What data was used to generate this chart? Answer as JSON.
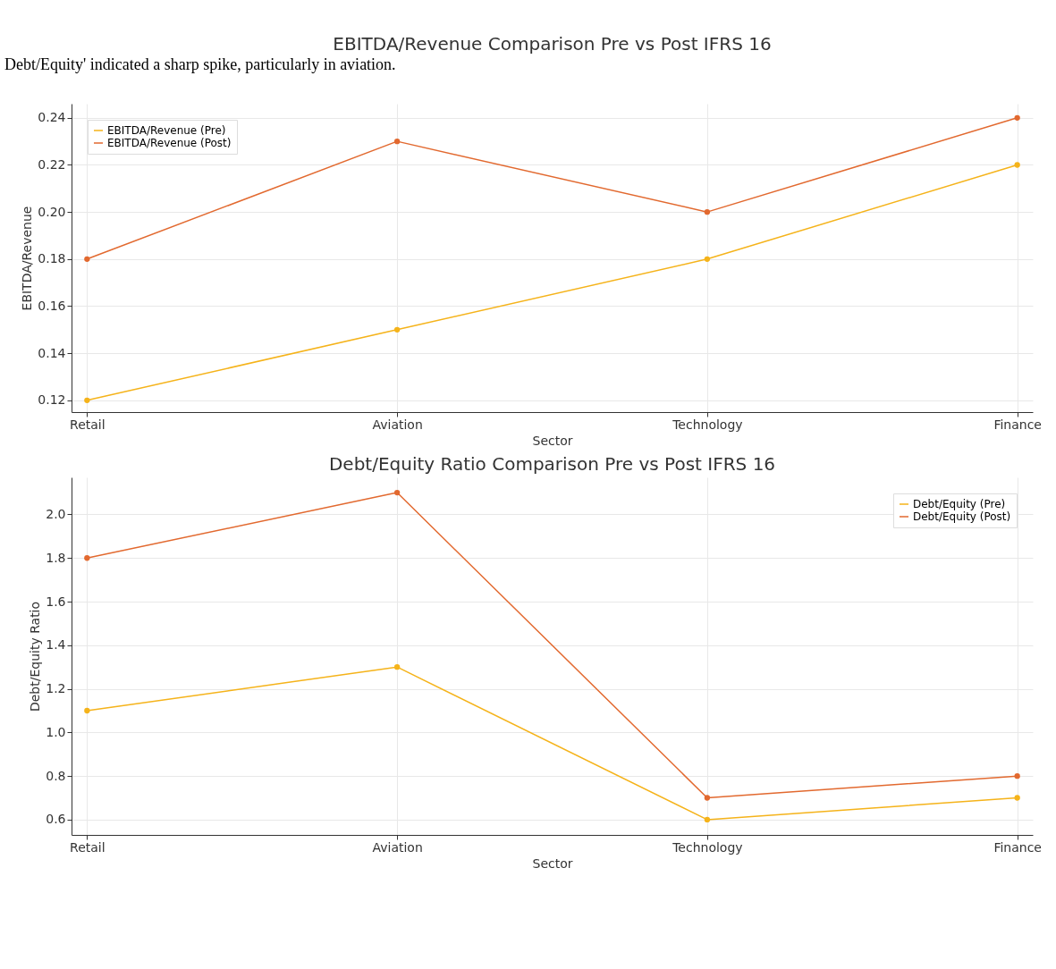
{
  "chart_data": [
    {
      "type": "line",
      "title": "EBITDA/Revenue Comparison Pre vs Post IFRS 16",
      "xlabel": "Sector",
      "ylabel": "EBITDA/Revenue",
      "annotations": [
        "Debt/Equity' indicated a sharp spike, particularly in aviation."
      ],
      "categories": [
        "Retail",
        "Aviation",
        "Technology",
        "Finance"
      ],
      "series": [
        {
          "name": "EBITDA/Revenue (Pre)",
          "color": "#f5b31a",
          "values": [
            0.12,
            0.15,
            0.18,
            0.22
          ]
        },
        {
          "name": "EBITDA/Revenue (Post)",
          "color": "#e2692f",
          "values": [
            0.18,
            0.23,
            0.2,
            0.24
          ]
        }
      ],
      "ylim": [
        0.115,
        0.246
      ],
      "yticks": [
        0.12,
        0.14,
        0.16,
        0.18,
        {
          "value": 0.2,
          "label": "0.20"
        },
        0.22,
        0.24
      ],
      "grid": true,
      "legend": "top left",
      "marker": "circle",
      "line_style": "solid"
    },
    {
      "type": "line",
      "title": "Debt/Equity Ratio Comparison Pre vs Post IFRS 16",
      "xlabel": "Sector",
      "ylabel": "Debt/Equity Ratio",
      "categories": [
        "Retail",
        "Aviation",
        "Technology",
        "Finance"
      ],
      "series": [
        {
          "name": "Debt/Equity (Pre)",
          "color": "#f5b31a",
          "values": [
            1.1,
            1.3,
            0.6,
            0.7
          ]
        },
        {
          "name": "Debt/Equity (Post)",
          "color": "#e2692f",
          "values": [
            1.8,
            2.1,
            0.7,
            0.8
          ]
        }
      ],
      "ylim": [
        0.53,
        2.17
      ],
      "yticks": [
        0.6,
        0.8,
        {
          "value": 1,
          "label": "1.0"
        },
        1.2,
        1.4,
        1.6,
        1.8,
        {
          "value": 2,
          "label": "2.0"
        }
      ],
      "grid": true,
      "legend": "top right",
      "marker": "circle",
      "line_style": "solid"
    }
  ]
}
